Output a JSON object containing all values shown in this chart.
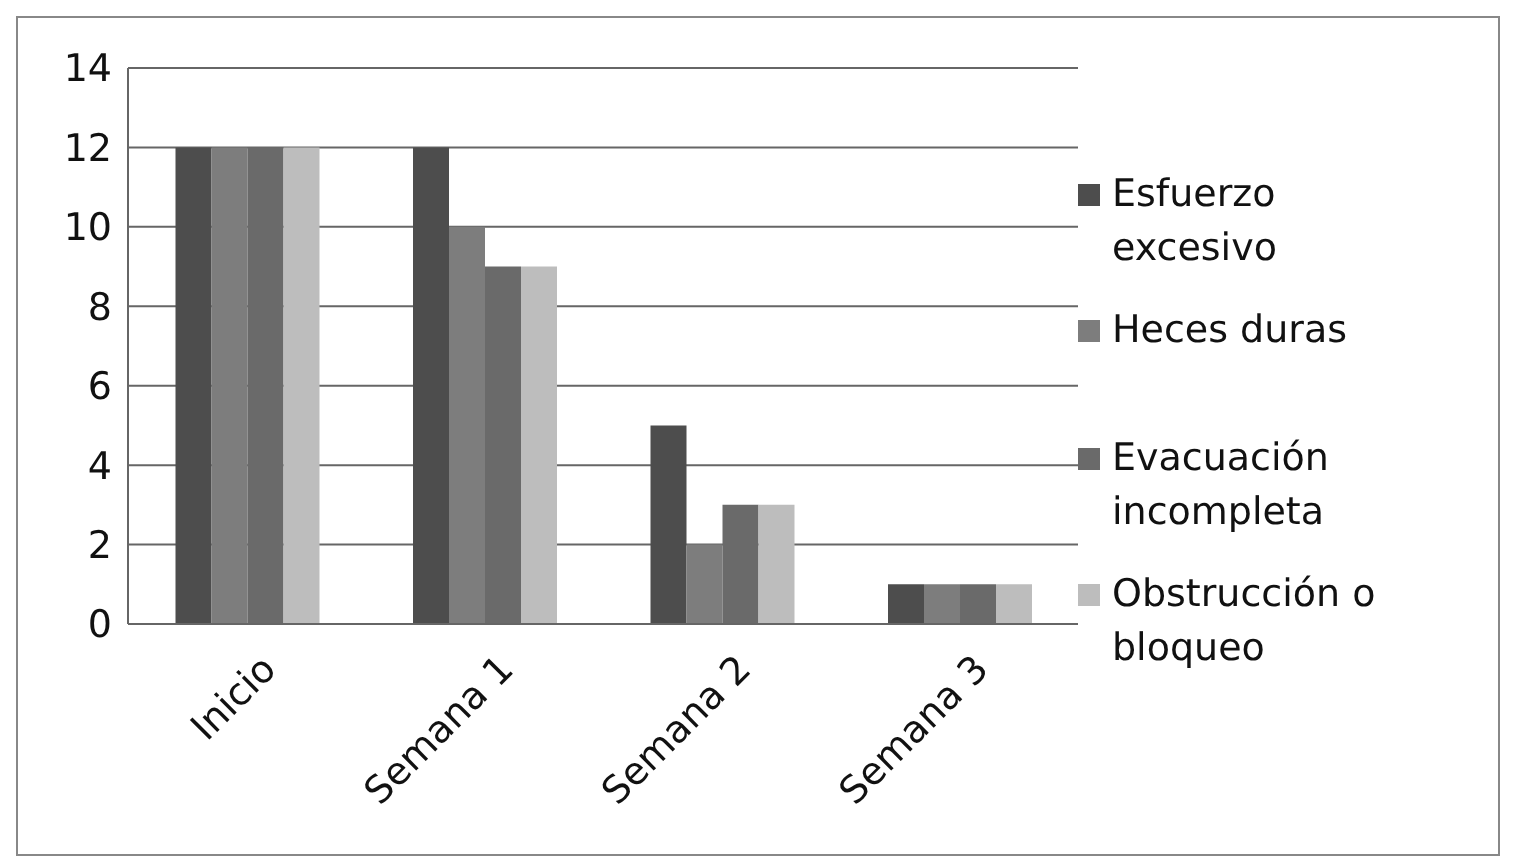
{
  "chart_data": {
    "type": "bar",
    "categories": [
      "Inicio",
      "Semana 1",
      "Semana 2",
      "Semana 3"
    ],
    "series": [
      {
        "name": "Esfuerzo excesivo",
        "color": "#4d4d4d",
        "values": [
          12,
          12,
          5,
          1
        ]
      },
      {
        "name": "Heces duras",
        "color": "#7d7d7d",
        "values": [
          12,
          10,
          2,
          1
        ]
      },
      {
        "name": "Evacuación incompleta",
        "color": "#6a6a6a",
        "values": [
          12,
          9,
          3,
          1
        ]
      },
      {
        "name": "Obstrucción o bloqueo",
        "color": "#bdbdbd",
        "values": [
          12,
          9,
          3,
          1
        ]
      }
    ],
    "ylim": [
      0,
      14
    ],
    "yticks": [
      0,
      2,
      4,
      6,
      8,
      10,
      12,
      14
    ],
    "grid": "y",
    "legend": "right"
  }
}
